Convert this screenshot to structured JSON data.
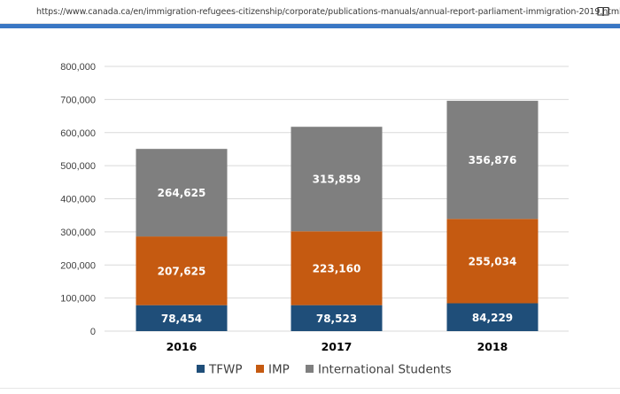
{
  "browser": {
    "url": "https://www.canada.ca/en/immigration-refugees-citizenship/corporate/publications-manuals/annual-report-parliament-immigration-2019.html"
  },
  "colors": {
    "accent_bar": "#3a77c4",
    "TFWP": "#1f4e79",
    "IMP": "#c55a11",
    "International Students": "#7f7f7f",
    "gridline": "#d9d9d9"
  },
  "icons": [
    "home-icon",
    "lock-icon",
    "book-icon"
  ],
  "chart_data": {
    "type": "bar",
    "stacked": true,
    "categories": [
      "2016",
      "2017",
      "2018"
    ],
    "series": [
      {
        "name": "TFWP",
        "values": [
          78454,
          78523,
          84229
        ],
        "labels": [
          "78,454",
          "78,523",
          "84,229"
        ]
      },
      {
        "name": "IMP",
        "values": [
          207625,
          223160,
          255034
        ],
        "labels": [
          "207,625",
          "223,160",
          "255,034"
        ]
      },
      {
        "name": "International Students",
        "values": [
          264625,
          315859,
          356876
        ],
        "labels": [
          "264,625",
          "315,859",
          "356,876"
        ]
      }
    ],
    "ylim": [
      0,
      800000
    ],
    "yticks": [
      0,
      100000,
      200000,
      300000,
      400000,
      500000,
      600000,
      700000,
      800000
    ],
    "ytick_labels": [
      "0",
      "100,000",
      "200,000",
      "300,000",
      "400,000",
      "500,000",
      "600,000",
      "700,000",
      "800,000"
    ],
    "grid": true,
    "legend_position": "bottom"
  }
}
